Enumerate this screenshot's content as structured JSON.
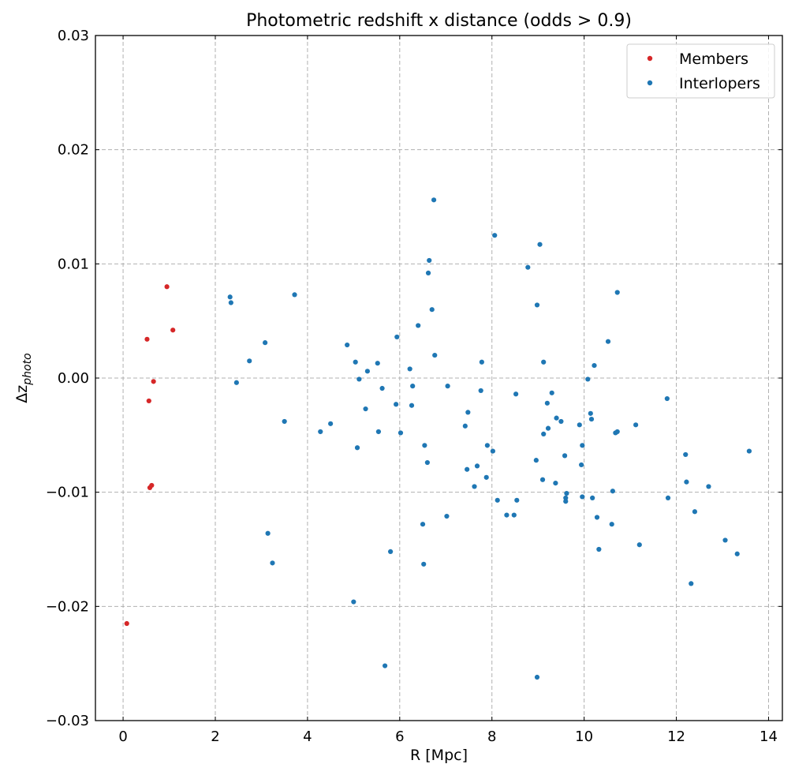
{
  "chart_data": {
    "type": "scatter",
    "title": "Photometric redshift x distance (odds > 0.9)",
    "xlabel": "R [Mpc]",
    "ylabel_main": "Δz",
    "ylabel_sub": "photo",
    "xlim": [
      -0.6,
      14.3
    ],
    "ylim": [
      -0.03,
      0.03
    ],
    "xticks": [
      0,
      2,
      4,
      6,
      8,
      10,
      12,
      14
    ],
    "xtick_labels": [
      "0",
      "2",
      "4",
      "6",
      "8",
      "10",
      "12",
      "14"
    ],
    "yticks": [
      -0.03,
      -0.02,
      -0.01,
      0.0,
      0.01,
      0.02,
      0.03
    ],
    "ytick_labels": [
      "−0.03",
      "−0.02",
      "−0.01",
      "0.00",
      "0.01",
      "0.02",
      "0.03"
    ],
    "grid": true,
    "legend_position": "top-right",
    "series": [
      {
        "name": "Members",
        "color": "#d62728",
        "x": [
          0.08,
          0.52,
          0.56,
          0.58,
          0.62,
          0.66,
          0.95,
          1.08
        ],
        "y": [
          -0.0215,
          0.0034,
          -0.002,
          -0.0096,
          -0.0094,
          -0.0003,
          0.008,
          0.0042
        ]
      },
      {
        "name": "Interlopers",
        "color": "#1f77b4",
        "x": [
          2.32,
          2.34,
          2.46,
          2.74,
          3.08,
          3.14,
          3.24,
          3.5,
          3.72,
          4.28,
          4.5,
          4.86,
          5.0,
          5.04,
          5.08,
          5.12,
          5.26,
          5.3,
          5.52,
          5.54,
          5.62,
          5.68,
          5.8,
          5.92,
          5.94,
          6.02,
          6.22,
          6.26,
          6.28,
          6.4,
          6.5,
          6.52,
          6.54,
          6.6,
          6.62,
          6.64,
          6.7,
          6.74,
          6.76,
          7.02,
          7.04,
          7.42,
          7.46,
          7.48,
          7.62,
          7.68,
          7.76,
          7.78,
          7.88,
          7.9,
          8.02,
          8.06,
          8.12,
          8.32,
          8.48,
          8.52,
          8.54,
          8.78,
          8.96,
          8.98,
          8.98,
          9.04,
          9.1,
          9.12,
          9.12,
          9.2,
          9.22,
          9.3,
          9.38,
          9.4,
          9.5,
          9.58,
          9.6,
          9.6,
          9.62,
          9.9,
          9.94,
          9.96,
          9.96,
          10.08,
          10.14,
          10.16,
          10.18,
          10.22,
          10.28,
          10.32,
          10.52,
          10.6,
          10.62,
          10.68,
          10.72,
          10.72,
          11.12,
          11.2,
          11.8,
          11.82,
          12.2,
          12.22,
          12.32,
          12.4,
          12.7,
          13.06,
          13.32,
          13.58
        ],
        "y": [
          0.0071,
          0.0066,
          -0.0004,
          0.0015,
          0.0031,
          -0.0136,
          -0.0162,
          -0.0038,
          0.0073,
          -0.0047,
          -0.004,
          0.0029,
          -0.0196,
          0.0014,
          -0.0061,
          -0.0001,
          -0.0027,
          0.0006,
          0.0013,
          -0.0047,
          -0.0009,
          -0.0252,
          -0.0152,
          -0.0023,
          0.0036,
          -0.0048,
          0.0008,
          -0.0024,
          -0.0007,
          0.0046,
          -0.0128,
          -0.0163,
          -0.0059,
          -0.0074,
          0.0092,
          0.0103,
          0.006,
          0.0156,
          0.002,
          -0.0121,
          -0.0007,
          -0.0042,
          -0.008,
          -0.003,
          -0.0095,
          -0.0077,
          -0.0011,
          0.0014,
          -0.0087,
          -0.0059,
          -0.0064,
          0.0125,
          -0.0107,
          -0.012,
          -0.012,
          -0.0014,
          -0.0107,
          0.0097,
          -0.0072,
          0.0064,
          -0.0262,
          0.0117,
          -0.0089,
          -0.0049,
          0.0014,
          -0.0022,
          -0.0044,
          -0.0013,
          -0.0092,
          -0.0035,
          -0.0038,
          -0.0068,
          -0.0105,
          -0.0108,
          -0.0101,
          -0.0041,
          -0.0076,
          -0.0059,
          -0.0104,
          -0.0001,
          -0.0031,
          -0.0036,
          -0.0105,
          0.0011,
          -0.0122,
          -0.015,
          0.0032,
          -0.0128,
          -0.0099,
          -0.0048,
          -0.0047,
          0.0075,
          -0.0041,
          -0.0146,
          -0.0018,
          -0.0105,
          -0.0067,
          -0.0091,
          -0.018,
          -0.0117,
          -0.0095,
          -0.0142,
          -0.0154,
          -0.0064
        ]
      }
    ]
  }
}
